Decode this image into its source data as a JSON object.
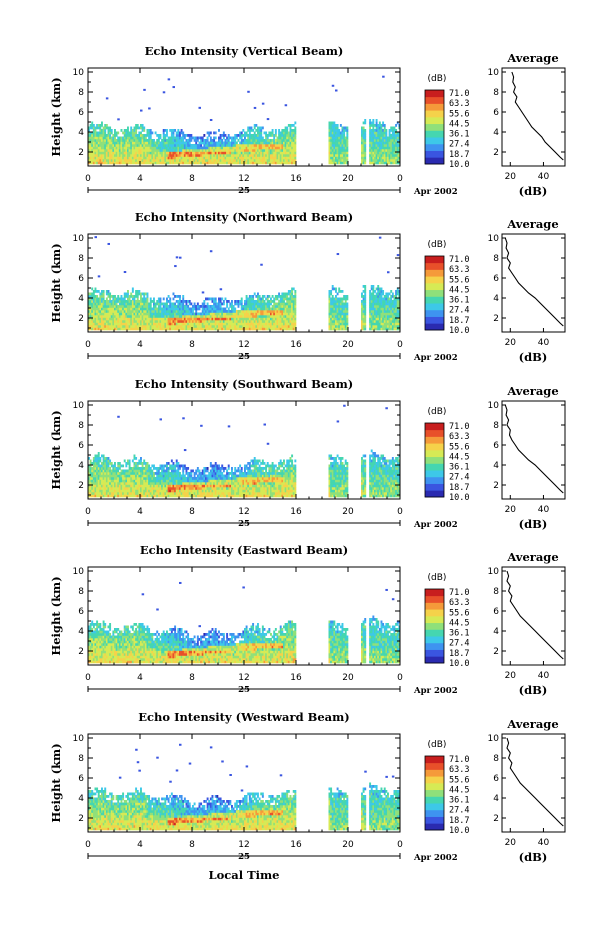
{
  "colors": {
    "scale": [
      "#2a2ab0",
      "#3a55e0",
      "#3e93f0",
      "#3dc8e8",
      "#45d6b0",
      "#8fe07a",
      "#d6ea55",
      "#f5d24a",
      "#f59a3a",
      "#e8502a",
      "#c81e1e"
    ],
    "axis": "#000000",
    "background": "#ffffff"
  },
  "common": {
    "colorbar_unit": "(dB)",
    "colorbar_ticks": [
      "71.0",
      "63.3",
      "55.6",
      "44.5",
      "36.1",
      "27.4",
      "18.7",
      "10.0"
    ],
    "y_ticks": [
      "2",
      "4",
      "6",
      "8",
      "10"
    ],
    "x_ticks": [
      "0",
      "4",
      "8",
      "12",
      "16",
      "20",
      "0"
    ],
    "day_label": "25",
    "date_label": "Apr 2002",
    "y_axis_label": "Height (km)",
    "avg_title": "Average",
    "avg_xlabel": "(dB)",
    "avg_y_ticks": [
      "2",
      "4",
      "6",
      "8",
      "10"
    ]
  },
  "footer": {
    "x_axis_label": "Local Time"
  },
  "chart_data": [
    {
      "type": "heatmap",
      "title": "Echo Intensity (Vertical Beam)",
      "xlabel": "",
      "ylabel": "Height (km)",
      "xlim": [
        0,
        24
      ],
      "ylim": [
        0.6,
        10.4
      ],
      "colorbar": {
        "label": "(dB)",
        "range": [
          10.0,
          71.0
        ]
      },
      "data_gaps_hours": [
        [
          16,
          18.5
        ],
        [
          20,
          21
        ],
        [
          21.3,
          21.6
        ]
      ],
      "avg_profile": {
        "type": "line",
        "title": "Average",
        "xlabel": "(dB)",
        "x_ticks": [
          "20",
          "40"
        ],
        "xlim": [
          15,
          53
        ],
        "ylim": [
          0.6,
          10.4
        ],
        "heights": [
          10,
          9.5,
          9,
          8.5,
          8,
          7.5,
          7,
          6.5,
          6,
          5.5,
          5,
          4.5,
          4,
          3.5,
          3,
          2.5,
          2,
          1.5,
          1.2
        ],
        "values": [
          21,
          22,
          21.5,
          23,
          22,
          24,
          23,
          25,
          27,
          29,
          31,
          33,
          36,
          39,
          41,
          44,
          47,
          50,
          52
        ]
      }
    },
    {
      "type": "heatmap",
      "title": "Echo Intensity (Northward Beam)",
      "xlabel": "",
      "ylabel": "Height (km)",
      "xlim": [
        0,
        24
      ],
      "ylim": [
        0.6,
        10.4
      ],
      "colorbar": {
        "label": "(dB)",
        "range": [
          10.0,
          71.0
        ]
      },
      "data_gaps_hours": [
        [
          16,
          18.5
        ],
        [
          20,
          21
        ],
        [
          21.3,
          21.6
        ]
      ],
      "avg_profile": {
        "type": "line",
        "title": "Average",
        "xlabel": "(dB)",
        "x_ticks": [
          "20",
          "40"
        ],
        "xlim": [
          15,
          53
        ],
        "ylim": [
          0.6,
          10.4
        ],
        "heights": [
          10,
          9.5,
          9,
          8.5,
          8,
          7.5,
          7,
          6.5,
          6,
          5.5,
          5,
          4.5,
          4,
          3.5,
          3,
          2.5,
          2,
          1.5,
          1.2
        ],
        "values": [
          17,
          18,
          17.5,
          19,
          18,
          20,
          19,
          21,
          23,
          25,
          28,
          31,
          35,
          38,
          41,
          44,
          47,
          50,
          52
        ]
      }
    },
    {
      "type": "heatmap",
      "title": "Echo Intensity (Southward Beam)",
      "xlabel": "",
      "ylabel": "Height (km)",
      "xlim": [
        0,
        24
      ],
      "ylim": [
        0.6,
        10.4
      ],
      "colorbar": {
        "label": "(dB)",
        "range": [
          10.0,
          71.0
        ]
      },
      "data_gaps_hours": [
        [
          16,
          18.5
        ],
        [
          20,
          21
        ],
        [
          21.3,
          21.6
        ]
      ],
      "avg_profile": {
        "type": "line",
        "title": "Average",
        "xlabel": "(dB)",
        "x_ticks": [
          "20",
          "40"
        ],
        "xlim": [
          15,
          53
        ],
        "ylim": [
          0.6,
          10.4
        ],
        "heights": [
          10,
          9.5,
          9,
          8.5,
          8,
          7.5,
          7,
          6.5,
          6,
          5.5,
          5,
          4.5,
          4,
          3.5,
          3,
          2.5,
          2,
          1.5,
          1.2
        ],
        "values": [
          17,
          18,
          17.5,
          19,
          18,
          20,
          19.5,
          21,
          23,
          25,
          28,
          31,
          35,
          38,
          41,
          44,
          47,
          50,
          52
        ]
      }
    },
    {
      "type": "heatmap",
      "title": "Echo Intensity (Eastward Beam)",
      "xlabel": "",
      "ylabel": "Height (km)",
      "xlim": [
        0,
        24
      ],
      "ylim": [
        0.6,
        10.4
      ],
      "colorbar": {
        "label": "(dB)",
        "range": [
          10.0,
          71.0
        ]
      },
      "data_gaps_hours": [
        [
          16,
          18.5
        ],
        [
          20,
          21
        ],
        [
          21.3,
          21.6
        ]
      ],
      "avg_profile": {
        "type": "line",
        "title": "Average",
        "xlabel": "(dB)",
        "x_ticks": [
          "20",
          "40"
        ],
        "xlim": [
          15,
          53
        ],
        "ylim": [
          0.6,
          10.4
        ],
        "heights": [
          10,
          9.5,
          9,
          8.5,
          8,
          7.5,
          7,
          6.5,
          6,
          5.5,
          5,
          4.5,
          4,
          3.5,
          3,
          2.5,
          2,
          1.5,
          1.2
        ],
        "values": [
          18,
          19,
          18,
          20,
          19,
          21,
          20,
          22,
          24,
          26,
          29,
          32,
          35,
          38,
          41,
          44,
          47,
          50,
          52
        ]
      }
    },
    {
      "type": "heatmap",
      "title": "Echo Intensity (Westward Beam)",
      "xlabel": "",
      "ylabel": "Height (km)",
      "xlim": [
        0,
        24
      ],
      "ylim": [
        0.6,
        10.4
      ],
      "colorbar": {
        "label": "(dB)",
        "range": [
          10.0,
          71.0
        ]
      },
      "data_gaps_hours": [
        [
          16,
          18.5
        ],
        [
          20,
          21
        ],
        [
          21.3,
          21.6
        ]
      ],
      "avg_profile": {
        "type": "line",
        "title": "Average",
        "xlabel": "(dB)",
        "x_ticks": [
          "20",
          "40"
        ],
        "xlim": [
          15,
          53
        ],
        "ylim": [
          0.6,
          10.4
        ],
        "heights": [
          10,
          9.5,
          9,
          8.5,
          8,
          7.5,
          7,
          6.5,
          6,
          5.5,
          5,
          4.5,
          4,
          3.5,
          3,
          2.5,
          2,
          1.5,
          1.2
        ],
        "values": [
          18,
          19,
          18,
          20,
          19,
          21,
          20,
          22,
          24,
          26,
          29,
          32,
          35,
          38,
          41,
          44,
          47,
          50,
          52
        ]
      }
    }
  ]
}
